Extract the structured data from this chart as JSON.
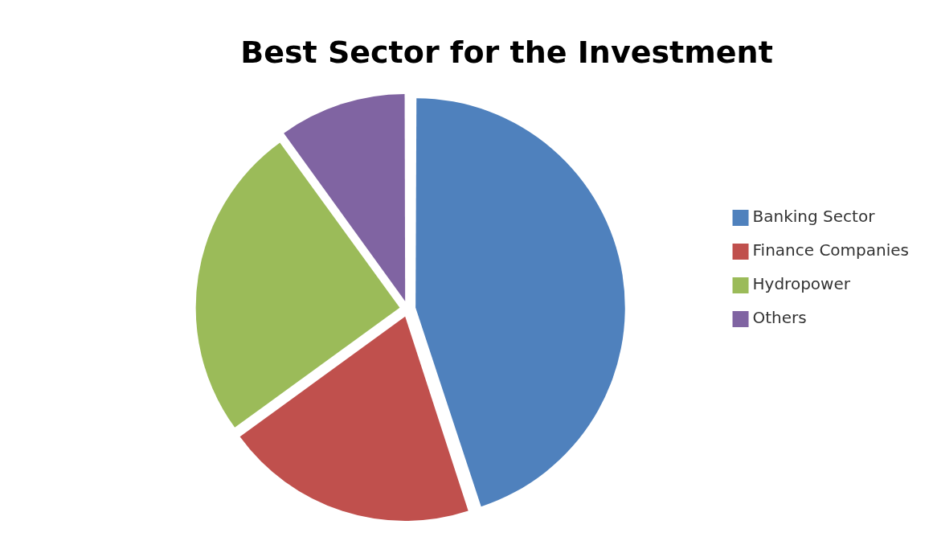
{
  "chart_data": {
    "type": "pie",
    "title": "Best Sector for the Investment",
    "categories": [
      "Banking Sector",
      "Finance Companies",
      "Hydropower",
      "Others"
    ],
    "values": [
      45,
      20,
      25,
      10
    ],
    "colors": [
      "#4f81bd",
      "#c0504d",
      "#9bbb59",
      "#8064a2"
    ],
    "legend": "right"
  }
}
